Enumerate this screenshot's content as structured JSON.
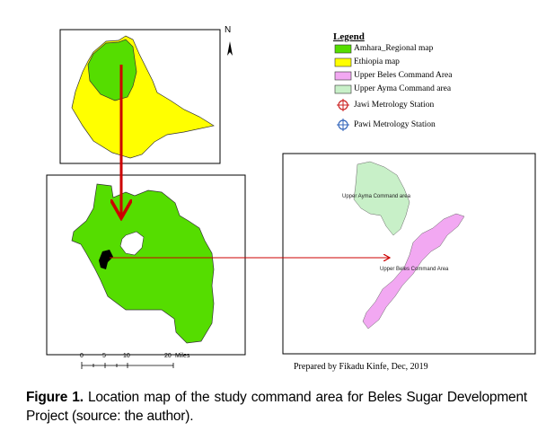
{
  "map": {
    "north_label": "N",
    "legend": {
      "title": "Legend",
      "items": [
        {
          "label": "Amhara_Regional map",
          "color": "#55dd00",
          "symbol": "swatch"
        },
        {
          "label": "Ethiopia map",
          "color": "#ffff00",
          "symbol": "swatch"
        },
        {
          "label": "Upper Beles Command Area",
          "color": "#f2a8f2",
          "symbol": "swatch"
        },
        {
          "label": "Upper Ayma Command area",
          "color": "#c8f0c8",
          "symbol": "swatch"
        },
        {
          "label": "Jawi Metrology Station",
          "color": "#cc2222",
          "symbol": "crosshair"
        },
        {
          "label": "Pawi Metrology Station",
          "color": "#3366bb",
          "symbol": "crosshair"
        }
      ]
    },
    "command_labels": {
      "ayma": "Upper Ayma Command area",
      "beles": "Upper Beles Command Area"
    },
    "scale_bar": {
      "ticks": [
        "0",
        "5",
        "10",
        "20"
      ],
      "unit": "Miles"
    },
    "credit": "Prepared by Fikadu Kinfe, Dec, 2019",
    "colors": {
      "ethiopia": "#ffff00",
      "amhara": "#55dd00",
      "study_area": "#000000",
      "arrow": "#cc0000",
      "ayma": "#c8f0c8",
      "beles": "#f2a8f2"
    }
  },
  "caption": {
    "prefix": "Figure 1.",
    "text": " Location map of the study command area for Beles Sugar Development Project (source: the author)."
  }
}
